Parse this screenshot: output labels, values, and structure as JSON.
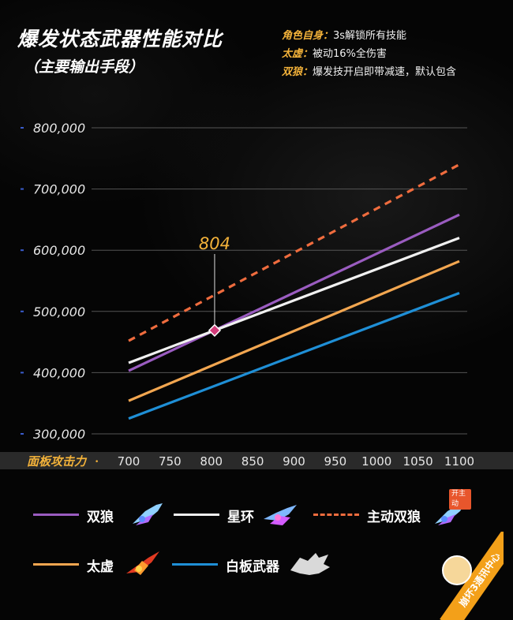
{
  "title": "爆发状态武器性能对比",
  "subtitle": "（主要输出手段）",
  "notes": [
    {
      "key": "角色自身：",
      "value": "3s解锁所有技能"
    },
    {
      "key": "太虚：",
      "value": "被动16%全伤害"
    },
    {
      "key": "双狼：",
      "value": "爆发技开启即带减速，默认包含"
    }
  ],
  "badge": {
    "text": "崩坏3通讯中心"
  },
  "legend_tag": "开主动",
  "colors": {
    "accent": "#f3b23a",
    "grid": "#555555",
    "axis_bar": "#2a2a2a"
  },
  "chart_data": {
    "type": "line",
    "xlabel": "面板攻击力",
    "ylabel": "",
    "x": [
      700,
      750,
      800,
      850,
      900,
      950,
      1000,
      1050,
      1100
    ],
    "xlim": [
      700,
      1100
    ],
    "ylim": [
      300000,
      800000
    ],
    "yticks": [
      "800,000",
      "700,000",
      "600,000",
      "500,000",
      "400,000",
      "300,000"
    ],
    "ytick_values": [
      800000,
      700000,
      600000,
      500000,
      400000,
      300000
    ],
    "grid": true,
    "legend_position": "bottom",
    "series": [
      {
        "name": "双狼",
        "color": "#9a5cc0",
        "dashed": false,
        "icon": "dual-wolf-weapon-icon",
        "points": [
          [
            700,
            403000
          ],
          [
            1100,
            658000
          ]
        ]
      },
      {
        "name": "星环",
        "color": "#f0f0f0",
        "dashed": false,
        "icon": "star-ring-weapon-icon",
        "points": [
          [
            700,
            416000
          ],
          [
            1100,
            620000
          ]
        ]
      },
      {
        "name": "主动双狼",
        "color": "#ef6c3e",
        "dashed": true,
        "icon": "active-dual-wolf-weapon-icon",
        "points": [
          [
            700,
            452000
          ],
          [
            1100,
            740000
          ]
        ]
      },
      {
        "name": "太虚",
        "color": "#f2a650",
        "dashed": false,
        "icon": "taixu-weapon-icon",
        "points": [
          [
            700,
            354000
          ],
          [
            1100,
            582000
          ]
        ]
      },
      {
        "name": "白板武器",
        "color": "#1f8fd6",
        "dashed": false,
        "icon": "blank-weapon-icon",
        "points": [
          [
            700,
            325000
          ],
          [
            1100,
            530000
          ]
        ]
      }
    ],
    "annotations": [
      {
        "text": "804",
        "x": 804,
        "y": 469000
      }
    ]
  }
}
